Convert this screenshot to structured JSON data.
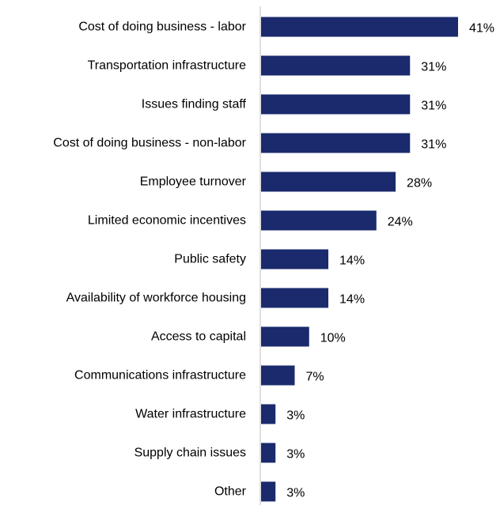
{
  "chart_data": {
    "type": "bar",
    "orientation": "horizontal",
    "title": "",
    "xlabel": "",
    "ylabel": "",
    "xlim": [
      0,
      41
    ],
    "grid": false,
    "legend": "none",
    "value_suffix": "%",
    "bar_color": "#1a2a6c",
    "axis_color": "#bfbfbf",
    "categories": [
      "Cost of doing business - labor",
      "Transportation infrastructure",
      "Issues finding staff",
      "Cost of doing business - non-labor",
      "Employee turnover",
      "Limited economic incentives",
      "Public safety",
      "Availability of workforce housing",
      "Access to capital",
      "Communications infrastructure",
      "Water infrastructure",
      "Supply chain issues",
      "Other"
    ],
    "values": [
      41,
      31,
      31,
      31,
      28,
      24,
      14,
      14,
      10,
      7,
      3,
      3,
      3
    ],
    "value_labels": [
      "41%",
      "31%",
      "31%",
      "31%",
      "28%",
      "24%",
      "14%",
      "14%",
      "10%",
      "7%",
      "3%",
      "3%",
      "3%"
    ]
  }
}
